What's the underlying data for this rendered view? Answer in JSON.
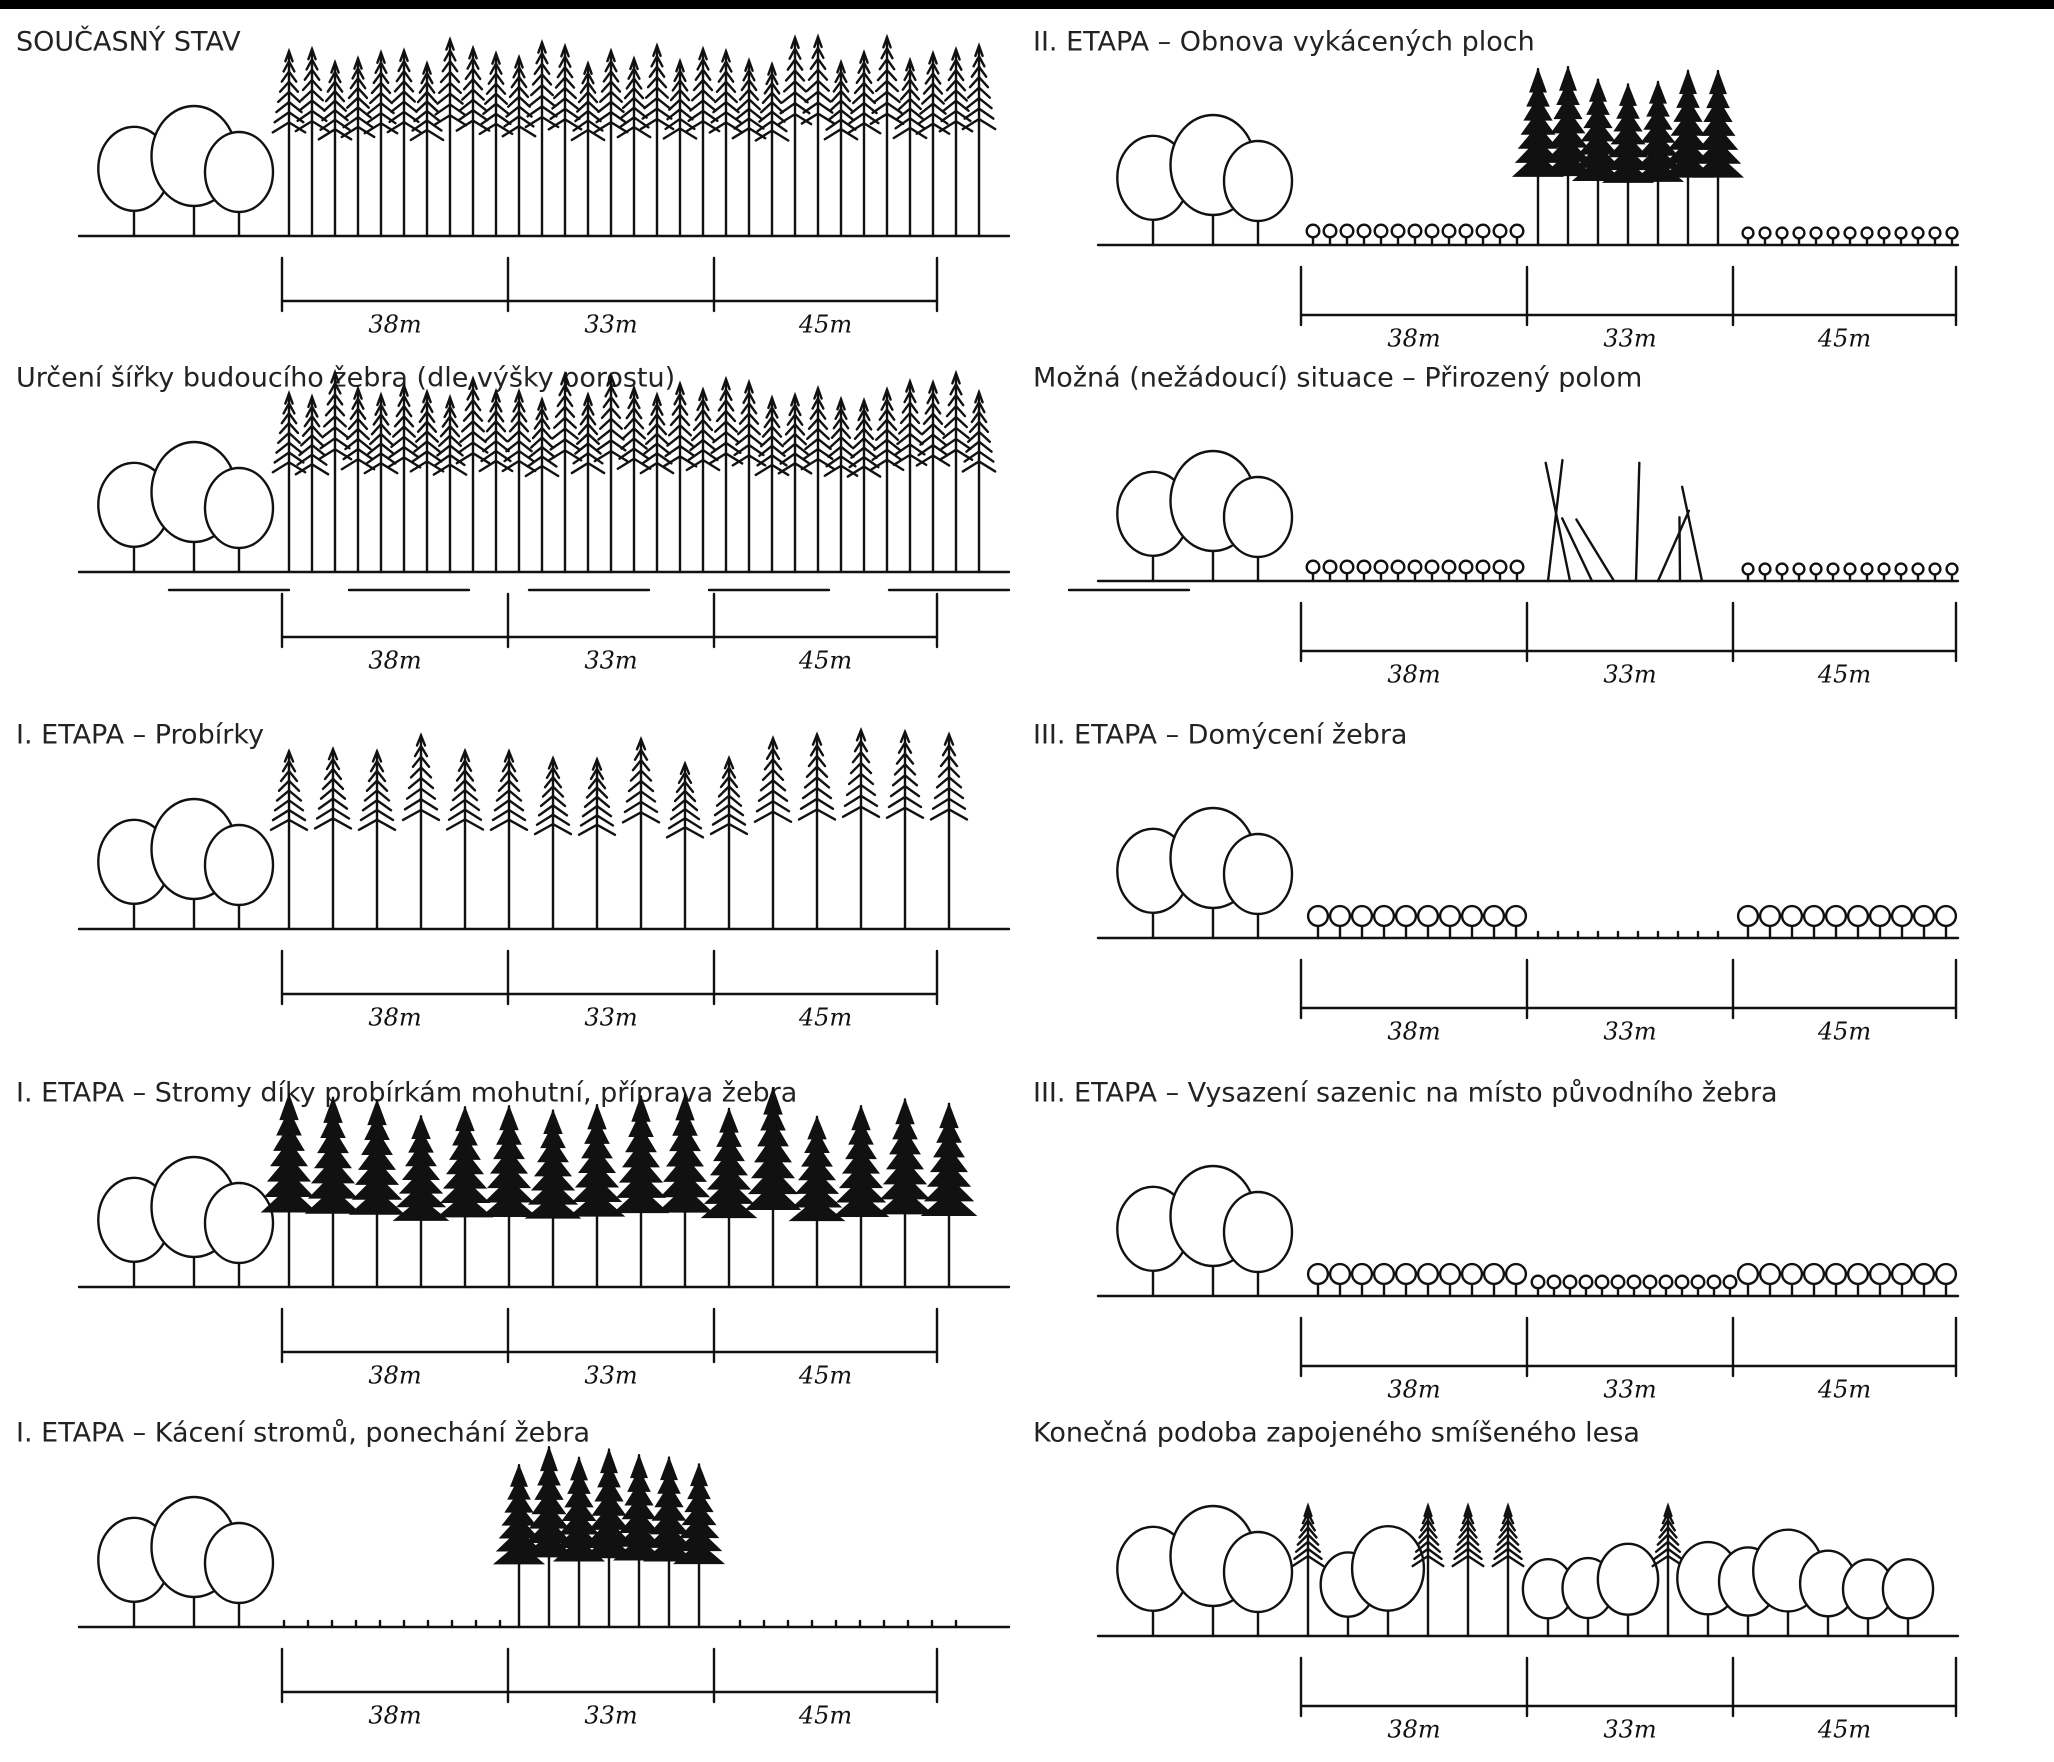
{
  "panels": [
    {
      "title": "SOUČASNÝ STAV",
      "dimensions": [
        "38m",
        "33m",
        "45m"
      ]
    },
    {
      "title": "Určení šířky budoucího žebra (dle výšky porostu)",
      "dimensions": [
        "38m",
        "33m",
        "45m"
      ]
    },
    {
      "title": "I. ETAPA – Probírky",
      "dimensions": [
        "38m",
        "33m",
        "45m"
      ]
    },
    {
      "title": "I. ETAPA – Stromy díky probírkám mohutní, příprava žebra",
      "dimensions": [
        "38m",
        "33m",
        "45m"
      ]
    },
    {
      "title": "I. ETAPA – Kácení stromů, ponechání žebra",
      "dimensions": [
        "38m",
        "33m",
        "45m"
      ]
    },
    {
      "title": "II. ETAPA – Obnova vykácených ploch",
      "dimensions": [
        "38m",
        "33m",
        "45m"
      ]
    },
    {
      "title": "Možná (nežádoucí) situace – Přirozený polom",
      "dimensions": [
        "38m",
        "33m",
        "45m"
      ]
    },
    {
      "title": "III. ETAPA – Domýcení žebra",
      "dimensions": [
        "38m",
        "33m",
        "45m"
      ]
    },
    {
      "title": "III. ETAPA – Vysazení sazenic na místo původního žebra",
      "dimensions": [
        "38m",
        "33m",
        "45m"
      ]
    },
    {
      "title": "Konečná podoba zapojeného smíšeného lesa",
      "dimensions": [
        "38m",
        "33m",
        "45m"
      ]
    }
  ]
}
